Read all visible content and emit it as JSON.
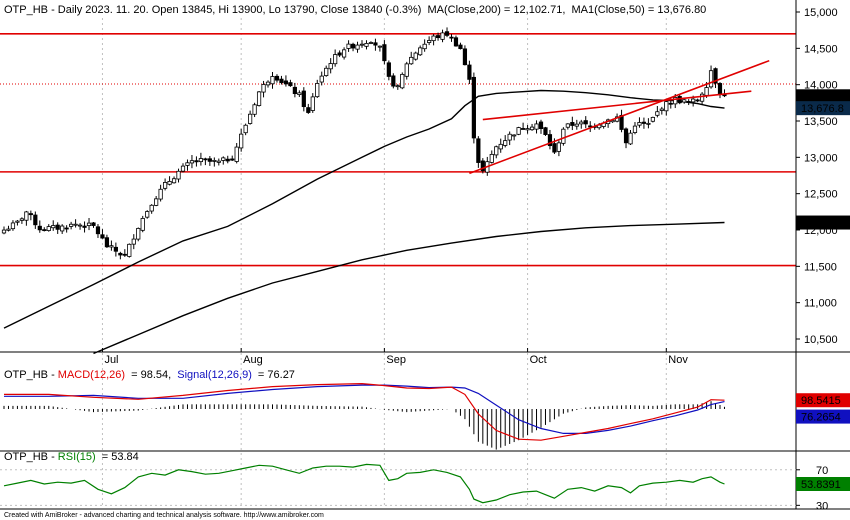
{
  "chart_data": {
    "type": "candlestick",
    "ticker": "OTP_HB",
    "header": {
      "prefix": "OTP_HB - Daily 2023. 11. 20. Open 13845, Hi 13900, Lo 13790, Close 13840 (-0.3%)",
      "ma200": "MA(Close,200) = 12,102.71,",
      "ma50": "MA1(Close,50) = 13,676.80"
    },
    "price_axis": {
      "ylim": [
        10300,
        15100
      ],
      "ticks": [
        10500,
        11000,
        11500,
        12000,
        12500,
        13000,
        13500,
        14000,
        14500,
        15000
      ],
      "tick_labels": [
        "10,500",
        "11,000",
        "11,500",
        "12,000",
        "12,500",
        "13,000",
        "13,500",
        "14,000",
        "14,500",
        "15,000"
      ]
    },
    "month_labels": [
      {
        "label": "Jul",
        "index": 22
      },
      {
        "label": "Aug",
        "index": 53
      },
      {
        "label": "Sep",
        "index": 85
      },
      {
        "label": "Oct",
        "index": 117
      },
      {
        "label": "Nov",
        "index": 148
      }
    ],
    "price_tags": [
      {
        "label": "13,840",
        "value": 13840,
        "color": "#000000"
      },
      {
        "label": "13,676.8",
        "value": 13676.8,
        "color": "#0a2a4a"
      },
      {
        "label": "12,102.7",
        "value": 12102.7,
        "color": "#000000"
      }
    ],
    "horizontal_levels": [
      {
        "value": 14700,
        "style": "solid",
        "color": "#e00000"
      },
      {
        "value": 14010,
        "style": "dotted",
        "color": "#e00000"
      },
      {
        "value": 12800,
        "style": "solid",
        "color": "#e00000"
      },
      {
        "value": 11510,
        "style": "solid",
        "color": "#e00000"
      }
    ],
    "trendlines": [
      {
        "from": [
          104,
          12780
        ],
        "to": [
          171,
          14330
        ],
        "color": "#e00000"
      },
      {
        "from": [
          107,
          13520
        ],
        "to": [
          167,
          13910
        ],
        "color": "#e00000"
      }
    ],
    "anchors": [
      [
        0,
        12000
      ],
      [
        3,
        12100
      ],
      [
        5,
        12250
      ],
      [
        8,
        12020
      ],
      [
        12,
        12030
      ],
      [
        16,
        12080
      ],
      [
        20,
        12050
      ],
      [
        23,
        11780
      ],
      [
        27,
        11640
      ],
      [
        30,
        12050
      ],
      [
        33,
        12380
      ],
      [
        36,
        12620
      ],
      [
        39,
        12800
      ],
      [
        42,
        12940
      ],
      [
        44,
        12950
      ],
      [
        48,
        12930
      ],
      [
        51,
        13000
      ],
      [
        54,
        13450
      ],
      [
        57,
        13900
      ],
      [
        60,
        14150
      ],
      [
        63,
        14000
      ],
      [
        66,
        13850
      ],
      [
        68,
        13600
      ],
      [
        70,
        14030
      ],
      [
        73,
        14320
      ],
      [
        76,
        14500
      ],
      [
        79,
        14560
      ],
      [
        82,
        14620
      ],
      [
        84,
        14500
      ],
      [
        86,
        14080
      ],
      [
        88,
        13950
      ],
      [
        90,
        14300
      ],
      [
        93,
        14520
      ],
      [
        96,
        14650
      ],
      [
        99,
        14700
      ],
      [
        102,
        14500
      ],
      [
        104,
        14050
      ],
      [
        105,
        13300
      ],
      [
        106,
        12950
      ],
      [
        107,
        12800
      ],
      [
        110,
        13150
      ],
      [
        113,
        13300
      ],
      [
        116,
        13420
      ],
      [
        119,
        13460
      ],
      [
        121,
        13300
      ],
      [
        123,
        13050
      ],
      [
        125,
        13400
      ],
      [
        128,
        13480
      ],
      [
        131,
        13420
      ],
      [
        134,
        13500
      ],
      [
        137,
        13550
      ],
      [
        139,
        13200
      ],
      [
        141,
        13460
      ],
      [
        144,
        13450
      ],
      [
        147,
        13700
      ],
      [
        150,
        13800
      ],
      [
        153,
        13750
      ],
      [
        155,
        13790
      ],
      [
        157,
        14000
      ],
      [
        158,
        14200
      ],
      [
        160,
        13900
      ],
      [
        161,
        13840
      ]
    ],
    "ma50": [
      [
        0,
        10650
      ],
      [
        10,
        10950
      ],
      [
        20,
        11250
      ],
      [
        30,
        11560
      ],
      [
        40,
        11850
      ],
      [
        50,
        12050
      ],
      [
        60,
        12360
      ],
      [
        70,
        12700
      ],
      [
        80,
        13000
      ],
      [
        85,
        13150
      ],
      [
        90,
        13280
      ],
      [
        95,
        13390
      ],
      [
        100,
        13530
      ],
      [
        103,
        13710
      ],
      [
        106,
        13840
      ],
      [
        110,
        13880
      ],
      [
        115,
        13900
      ],
      [
        120,
        13920
      ],
      [
        125,
        13910
      ],
      [
        130,
        13890
      ],
      [
        135,
        13860
      ],
      [
        140,
        13820
      ],
      [
        145,
        13790
      ],
      [
        150,
        13780
      ],
      [
        155,
        13740
      ],
      [
        158,
        13700
      ],
      [
        161,
        13677
      ]
    ],
    "ma200": [
      [
        20,
        10300
      ],
      [
        30,
        10560
      ],
      [
        40,
        10820
      ],
      [
        50,
        11060
      ],
      [
        60,
        11270
      ],
      [
        70,
        11430
      ],
      [
        80,
        11590
      ],
      [
        90,
        11720
      ],
      [
        100,
        11820
      ],
      [
        110,
        11910
      ],
      [
        120,
        11980
      ],
      [
        130,
        12030
      ],
      [
        140,
        12060
      ],
      [
        150,
        12080
      ],
      [
        161,
        12103
      ]
    ],
    "macd": {
      "label": "OTP_HB - ",
      "macd_name": "MACD(12,26)",
      "macd_value": "= 98.54,",
      "signal_name": "Signal(12,26,9)",
      "signal_value": "= 76.27",
      "tag_macd": "98.5415",
      "tag_signal": "76.2654",
      "ylim": [
        -400,
        400
      ],
      "macd_line": [
        [
          0,
          150
        ],
        [
          10,
          150
        ],
        [
          20,
          120
        ],
        [
          30,
          100
        ],
        [
          40,
          140
        ],
        [
          50,
          190
        ],
        [
          60,
          230
        ],
        [
          70,
          250
        ],
        [
          80,
          260
        ],
        [
          85,
          240
        ],
        [
          90,
          215
        ],
        [
          95,
          210
        ],
        [
          100,
          225
        ],
        [
          103,
          150
        ],
        [
          106,
          -50
        ],
        [
          110,
          -220
        ],
        [
          115,
          -310
        ],
        [
          120,
          -320
        ],
        [
          125,
          -280
        ],
        [
          130,
          -240
        ],
        [
          135,
          -200
        ],
        [
          140,
          -150
        ],
        [
          145,
          -100
        ],
        [
          150,
          -40
        ],
        [
          155,
          20
        ],
        [
          158,
          95
        ],
        [
          161,
          90
        ]
      ],
      "signal_line": [
        [
          0,
          130
        ],
        [
          10,
          130
        ],
        [
          20,
          140
        ],
        [
          30,
          110
        ],
        [
          40,
          110
        ],
        [
          50,
          160
        ],
        [
          60,
          200
        ],
        [
          70,
          230
        ],
        [
          80,
          245
        ],
        [
          85,
          245
        ],
        [
          90,
          235
        ],
        [
          95,
          220
        ],
        [
          100,
          225
        ],
        [
          103,
          215
        ],
        [
          106,
          160
        ],
        [
          110,
          40
        ],
        [
          115,
          -110
        ],
        [
          120,
          -200
        ],
        [
          125,
          -250
        ],
        [
          130,
          -250
        ],
        [
          135,
          -220
        ],
        [
          140,
          -175
        ],
        [
          145,
          -120
        ],
        [
          150,
          -70
        ],
        [
          155,
          -10
        ],
        [
          158,
          45
        ],
        [
          161,
          76
        ]
      ]
    },
    "rsi": {
      "label": "OTP_HB - ",
      "rsi_name": "RSI(15)",
      "rsi_value": "= 53.84",
      "tag": "53.8391",
      "ylim": [
        27,
        90
      ],
      "ticks": [
        30,
        70
      ],
      "tick_labels": [
        "30",
        "70"
      ],
      "values": [
        [
          0,
          52
        ],
        [
          3,
          55
        ],
        [
          6,
          58
        ],
        [
          9,
          54
        ],
        [
          12,
          56
        ],
        [
          15,
          55
        ],
        [
          18,
          58
        ],
        [
          21,
          48
        ],
        [
          24,
          43
        ],
        [
          27,
          50
        ],
        [
          30,
          62
        ],
        [
          33,
          66
        ],
        [
          36,
          64
        ],
        [
          39,
          70
        ],
        [
          42,
          68
        ],
        [
          45,
          65
        ],
        [
          48,
          66
        ],
        [
          51,
          69
        ],
        [
          54,
          72
        ],
        [
          57,
          75
        ],
        [
          60,
          74
        ],
        [
          63,
          70
        ],
        [
          66,
          66
        ],
        [
          69,
          72
        ],
        [
          72,
          74
        ],
        [
          75,
          74
        ],
        [
          78,
          73
        ],
        [
          81,
          76
        ],
        [
          84,
          75
        ],
        [
          86,
          58
        ],
        [
          88,
          60
        ],
        [
          90,
          66
        ],
        [
          93,
          67
        ],
        [
          96,
          70
        ],
        [
          99,
          67
        ],
        [
          102,
          62
        ],
        [
          104,
          48
        ],
        [
          105,
          37
        ],
        [
          107,
          33
        ],
        [
          110,
          36
        ],
        [
          113,
          42
        ],
        [
          116,
          45
        ],
        [
          119,
          46
        ],
        [
          121,
          42
        ],
        [
          123,
          38
        ],
        [
          126,
          48
        ],
        [
          129,
          50
        ],
        [
          132,
          46
        ],
        [
          135,
          52
        ],
        [
          138,
          50
        ],
        [
          140,
          44
        ],
        [
          142,
          52
        ],
        [
          145,
          55
        ],
        [
          148,
          56
        ],
        [
          151,
          58
        ],
        [
          154,
          56
        ],
        [
          156,
          60
        ],
        [
          158,
          62
        ],
        [
          160,
          56
        ],
        [
          161,
          54
        ]
      ]
    },
    "footer": "Created with AmiBroker - advanced charting and technical analysis software. http://www.amibroker.com"
  }
}
